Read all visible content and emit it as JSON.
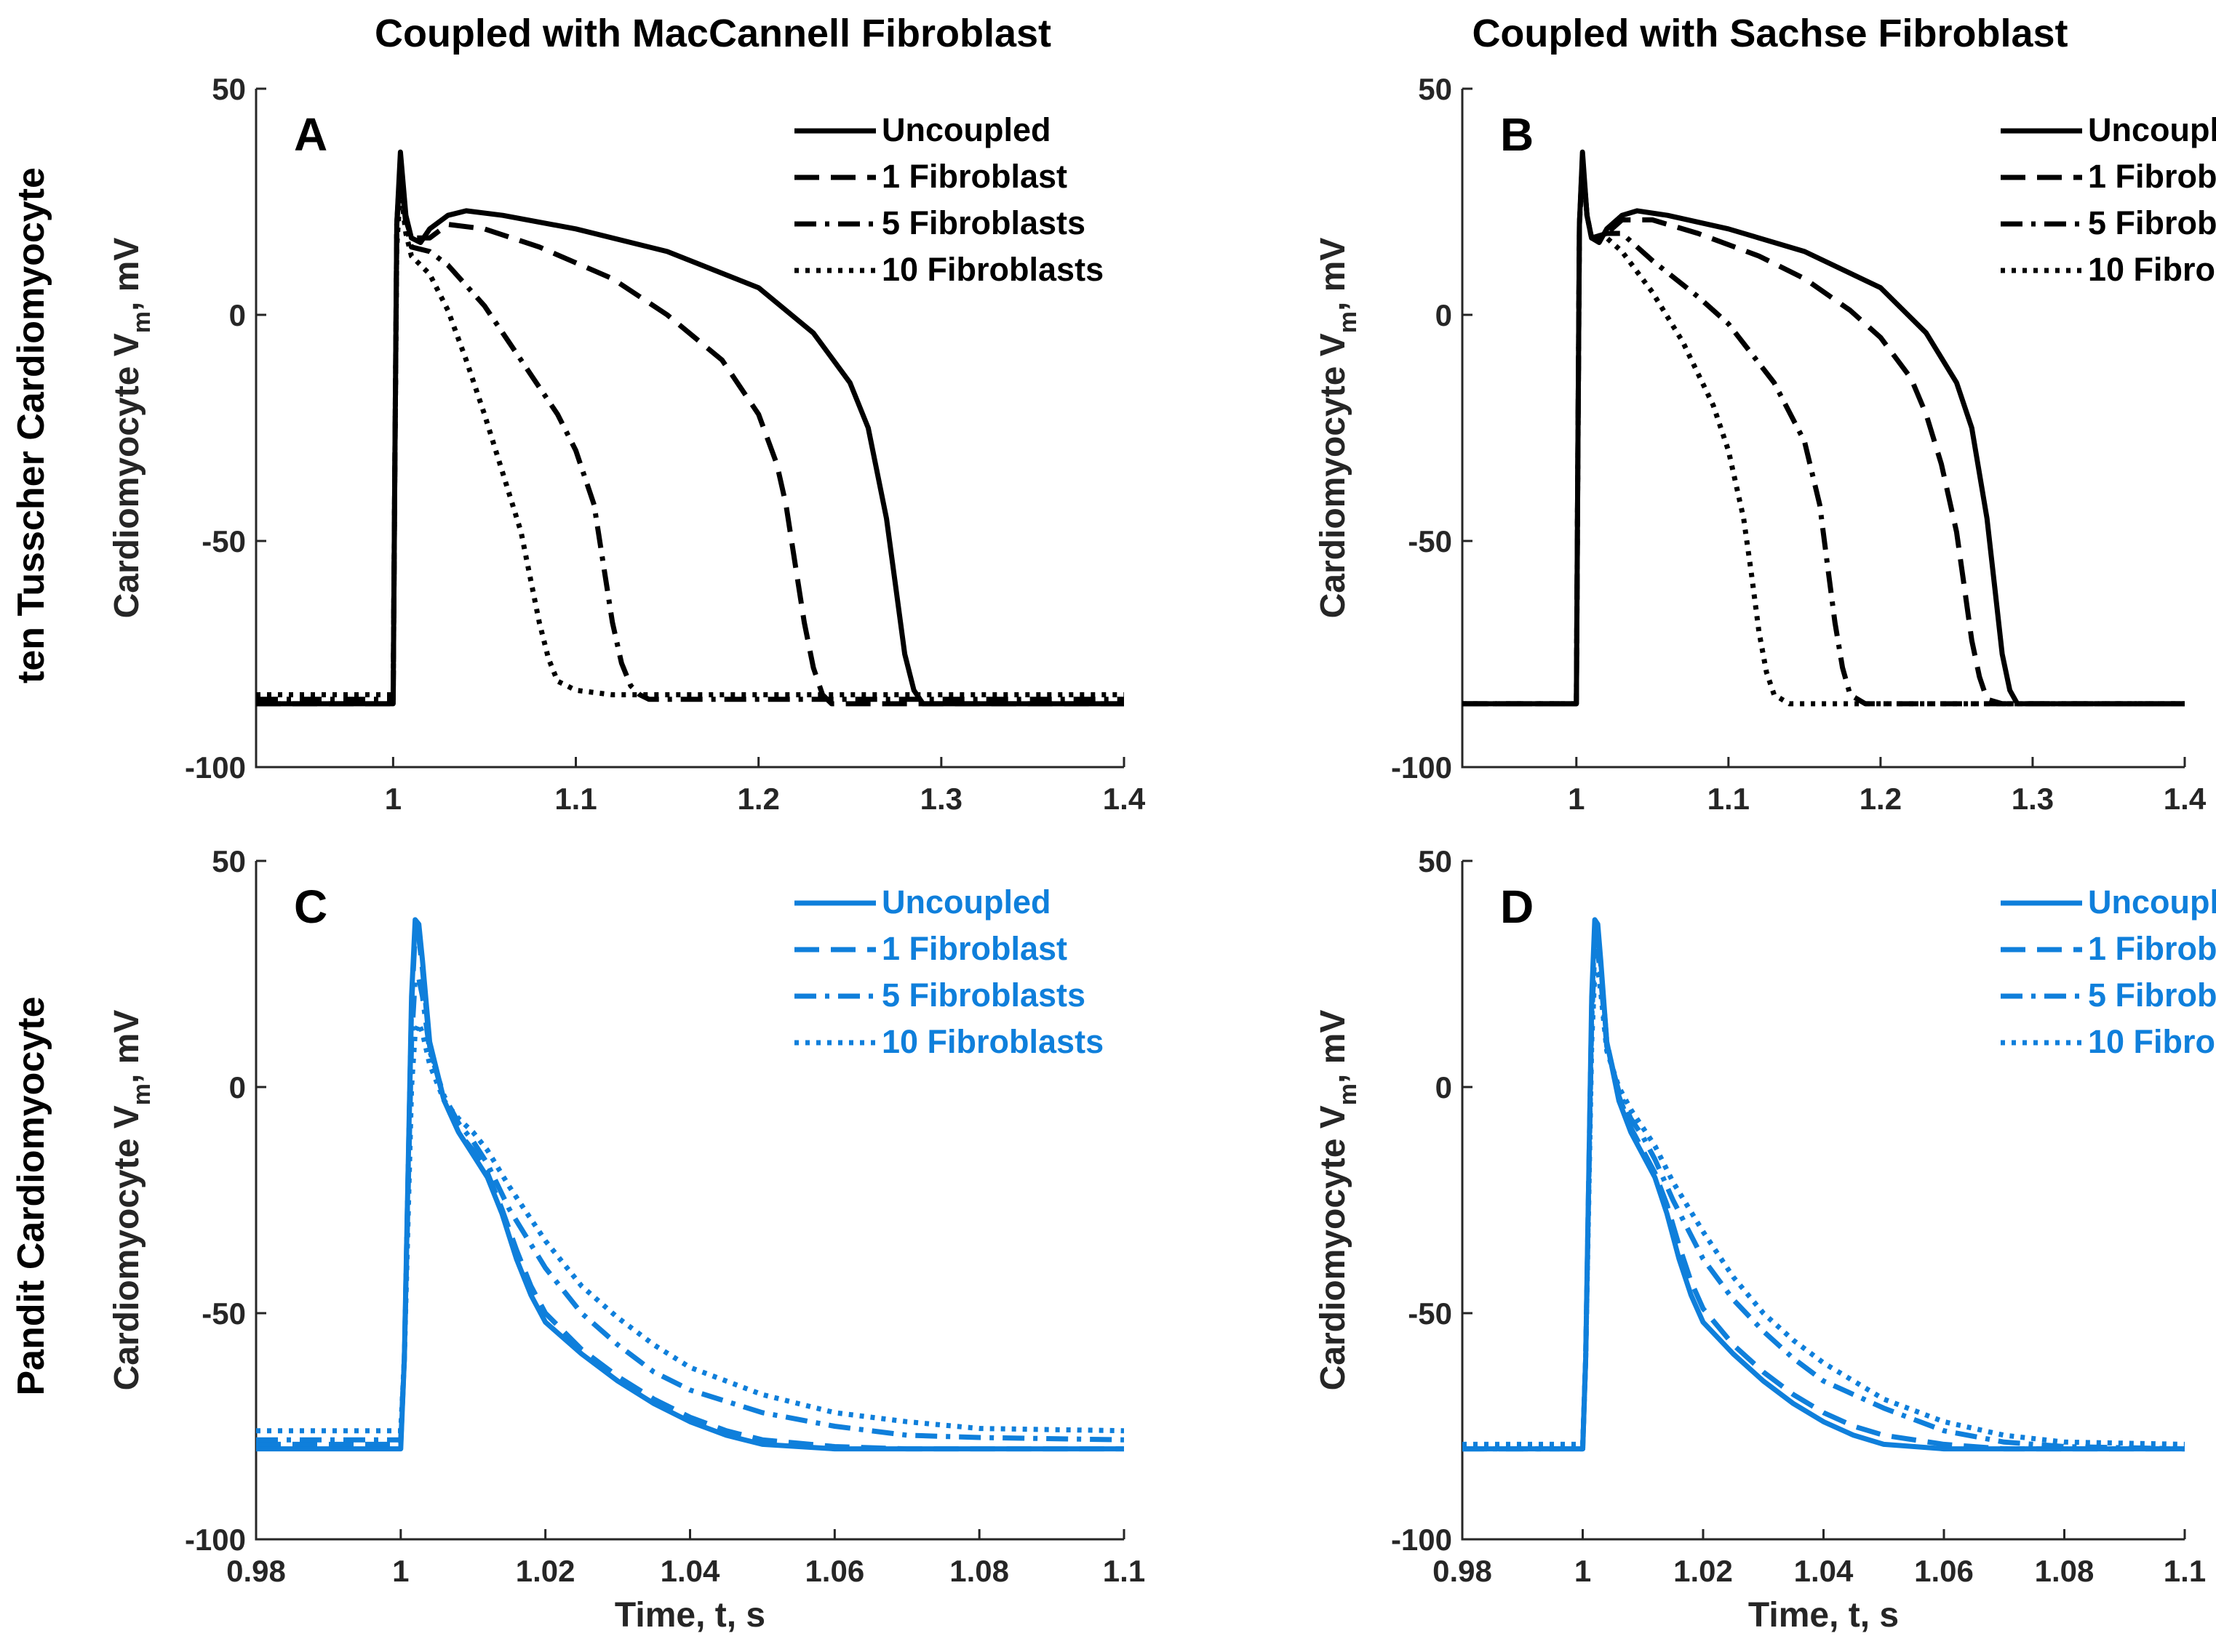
{
  "columns": [
    "Coupled with MacCannell Fibroblast",
    "Coupled with Sachse Fibroblast"
  ],
  "rows": [
    "ten Tusscher Cardiomyocyte",
    "Pandit Cardiomyocyte"
  ],
  "ylabel": "Cardiomyocyte V",
  "ylabel_sub": "m",
  "ylabel_tail": ", mV",
  "xlabel": "Time, t, s",
  "legend_labels": [
    "Uncoupled",
    "1 Fibroblast",
    "5 Fibroblasts",
    "10 Fibroblasts"
  ],
  "colors": {
    "ten_tusscher": "#000000",
    "pandit": "#0F7FDB",
    "axis": "#262626"
  },
  "chart_data": [
    {
      "panel": "A",
      "type": "line",
      "row": 0,
      "col": 0,
      "xlim": [
        0.925,
        1.4
      ],
      "ylim": [
        -100,
        50
      ],
      "xticks": [
        "1",
        "1.1",
        "1.2",
        "1.3",
        "1.4"
      ],
      "xtick_values": [
        1,
        1.1,
        1.2,
        1.3,
        1.4
      ],
      "yticks": [
        "50",
        "0",
        "-50",
        "-100"
      ],
      "ytick_values": [
        50,
        0,
        -50,
        -100
      ],
      "series": [
        {
          "name": "Uncoupled",
          "style": "solid",
          "x": [
            0.925,
            1.0,
            1.001,
            1.002,
            1.004,
            1.007,
            1.01,
            1.015,
            1.02,
            1.03,
            1.04,
            1.06,
            1.1,
            1.15,
            1.2,
            1.23,
            1.25,
            1.26,
            1.27,
            1.275,
            1.28,
            1.285,
            1.29,
            1.3,
            1.35,
            1.4
          ],
          "y": [
            -86,
            -86,
            -30,
            20,
            36,
            22,
            17,
            16,
            19,
            22,
            23,
            22,
            19,
            14,
            6,
            -4,
            -15,
            -25,
            -45,
            -60,
            -75,
            -83,
            -86,
            -86,
            -86,
            -86
          ]
        },
        {
          "name": "1 Fibroblast",
          "style": "dashed",
          "x": [
            0.925,
            1.0,
            1.001,
            1.002,
            1.004,
            1.007,
            1.01,
            1.02,
            1.03,
            1.05,
            1.08,
            1.12,
            1.15,
            1.18,
            1.2,
            1.21,
            1.215,
            1.22,
            1.225,
            1.23,
            1.235,
            1.24,
            1.26,
            1.3,
            1.35,
            1.4
          ],
          "y": [
            -86,
            -86,
            -30,
            20,
            34,
            21,
            17,
            17,
            20,
            19,
            15,
            8,
            0,
            -10,
            -22,
            -33,
            -42,
            -55,
            -68,
            -78,
            -84,
            -86,
            -86,
            -86,
            -86,
            -86
          ]
        },
        {
          "name": "5 Fibroblasts",
          "style": "dashdot",
          "x": [
            0.925,
            1.0,
            1.001,
            1.002,
            1.004,
            1.007,
            1.01,
            1.02,
            1.03,
            1.05,
            1.07,
            1.09,
            1.1,
            1.11,
            1.115,
            1.12,
            1.125,
            1.13,
            1.135,
            1.14,
            1.16,
            1.2,
            1.3,
            1.4
          ],
          "y": [
            -85,
            -85,
            -30,
            20,
            32,
            20,
            15,
            14,
            11,
            2,
            -10,
            -22,
            -30,
            -42,
            -55,
            -68,
            -77,
            -82,
            -84,
            -85,
            -85,
            -85,
            -85,
            -85
          ]
        },
        {
          "name": "10 Fibroblasts",
          "style": "dotted",
          "x": [
            0.925,
            1.0,
            1.001,
            1.002,
            1.004,
            1.007,
            1.01,
            1.02,
            1.03,
            1.04,
            1.05,
            1.06,
            1.07,
            1.075,
            1.08,
            1.085,
            1.09,
            1.1,
            1.12,
            1.15,
            1.2,
            1.3,
            1.4
          ],
          "y": [
            -84,
            -84,
            -30,
            15,
            28,
            18,
            13,
            9,
            1,
            -10,
            -22,
            -35,
            -48,
            -58,
            -68,
            -76,
            -81,
            -83,
            -84,
            -84,
            -84,
            -84,
            -84
          ]
        }
      ]
    },
    {
      "panel": "B",
      "type": "line",
      "row": 0,
      "col": 1,
      "xlim": [
        0.925,
        1.4
      ],
      "ylim": [
        -100,
        50
      ],
      "xticks": [
        "1",
        "1.1",
        "1.2",
        "1.3",
        "1.4"
      ],
      "xtick_values": [
        1,
        1.1,
        1.2,
        1.3,
        1.4
      ],
      "yticks": [
        "50",
        "0",
        "-50",
        "-100"
      ],
      "ytick_values": [
        50,
        0,
        -50,
        -100
      ],
      "series": [
        {
          "name": "Uncoupled",
          "style": "solid",
          "x": [
            0.925,
            1.0,
            1.001,
            1.002,
            1.004,
            1.007,
            1.01,
            1.015,
            1.02,
            1.03,
            1.04,
            1.06,
            1.1,
            1.15,
            1.2,
            1.23,
            1.25,
            1.26,
            1.27,
            1.275,
            1.28,
            1.285,
            1.29,
            1.3,
            1.35,
            1.4
          ],
          "y": [
            -86,
            -86,
            -30,
            20,
            36,
            22,
            17,
            16,
            19,
            22,
            23,
            22,
            19,
            14,
            6,
            -4,
            -15,
            -25,
            -45,
            -60,
            -75,
            -83,
            -86,
            -86,
            -86,
            -86
          ]
        },
        {
          "name": "1 Fibroblast",
          "style": "dashed",
          "x": [
            0.925,
            1.0,
            1.001,
            1.002,
            1.004,
            1.007,
            1.01,
            1.02,
            1.03,
            1.05,
            1.08,
            1.12,
            1.15,
            1.18,
            1.2,
            1.22,
            1.23,
            1.24,
            1.25,
            1.255,
            1.26,
            1.265,
            1.27,
            1.28,
            1.3,
            1.4
          ],
          "y": [
            -86,
            -86,
            -30,
            20,
            35,
            22,
            17,
            18,
            21,
            21,
            18,
            13,
            8,
            1,
            -5,
            -14,
            -22,
            -33,
            -48,
            -60,
            -72,
            -80,
            -85,
            -86,
            -86,
            -86
          ]
        },
        {
          "name": "5 Fibroblasts",
          "style": "dashdot",
          "x": [
            0.925,
            1.0,
            1.001,
            1.002,
            1.004,
            1.007,
            1.01,
            1.02,
            1.03,
            1.05,
            1.08,
            1.1,
            1.13,
            1.15,
            1.16,
            1.165,
            1.17,
            1.175,
            1.18,
            1.19,
            1.2,
            1.3,
            1.4
          ],
          "y": [
            -86,
            -86,
            -30,
            20,
            34,
            22,
            17,
            18,
            18,
            12,
            4,
            -2,
            -15,
            -28,
            -42,
            -55,
            -68,
            -78,
            -84,
            -86,
            -86,
            -86,
            -86
          ]
        },
        {
          "name": "10 Fibroblasts",
          "style": "dotted",
          "x": [
            0.925,
            1.0,
            1.001,
            1.002,
            1.004,
            1.007,
            1.01,
            1.02,
            1.03,
            1.05,
            1.07,
            1.09,
            1.1,
            1.11,
            1.115,
            1.12,
            1.125,
            1.13,
            1.14,
            1.16,
            1.2,
            1.3,
            1.4
          ],
          "y": [
            -86,
            -86,
            -30,
            20,
            33,
            22,
            17,
            17,
            14,
            5,
            -6,
            -20,
            -30,
            -45,
            -57,
            -70,
            -79,
            -84,
            -86,
            -86,
            -86,
            -86,
            -86
          ]
        }
      ]
    },
    {
      "panel": "C",
      "type": "line",
      "row": 1,
      "col": 0,
      "xlim": [
        0.98,
        1.1
      ],
      "ylim": [
        -100,
        50
      ],
      "xticks": [
        "0.98",
        "1",
        "1.02",
        "1.04",
        "1.06",
        "1.08",
        "1.1"
      ],
      "xtick_values": [
        0.98,
        1.0,
        1.02,
        1.04,
        1.06,
        1.08,
        1.1
      ],
      "yticks": [
        "50",
        "0",
        "-50",
        "-100"
      ],
      "ytick_values": [
        50,
        0,
        -50,
        -100
      ],
      "series": [
        {
          "name": "Uncoupled",
          "style": "solid",
          "x": [
            0.98,
            1.0,
            1.0005,
            1.001,
            1.0015,
            1.002,
            1.0025,
            1.003,
            1.004,
            1.006,
            1.008,
            1.01,
            1.012,
            1.014,
            1.016,
            1.018,
            1.02,
            1.025,
            1.03,
            1.035,
            1.04,
            1.045,
            1.05,
            1.06,
            1.07,
            1.08,
            1.1
          ],
          "y": [
            -80,
            -80,
            -60,
            -20,
            20,
            37,
            36,
            28,
            10,
            -3,
            -10,
            -15,
            -20,
            -28,
            -38,
            -46,
            -52,
            -59,
            -65,
            -70,
            -74,
            -77,
            -79,
            -80,
            -80,
            -80,
            -80
          ]
        },
        {
          "name": "1 Fibroblast",
          "style": "dashed",
          "x": [
            0.98,
            1.0,
            1.0005,
            1.001,
            1.0015,
            1.002,
            1.0025,
            1.003,
            1.004,
            1.006,
            1.008,
            1.01,
            1.012,
            1.014,
            1.016,
            1.018,
            1.02,
            1.025,
            1.03,
            1.035,
            1.04,
            1.045,
            1.05,
            1.06,
            1.07,
            1.08,
            1.1
          ],
          "y": [
            -79,
            -79,
            -60,
            -20,
            18,
            34,
            33,
            26,
            9,
            -3,
            -10,
            -14,
            -19,
            -27,
            -36,
            -44,
            -50,
            -58,
            -64,
            -69,
            -73,
            -76,
            -78,
            -79.5,
            -80,
            -80,
            -80
          ]
        },
        {
          "name": "5 Fibroblasts",
          "style": "dashdot",
          "x": [
            0.98,
            1.0,
            1.0005,
            1.001,
            1.0015,
            1.002,
            1.0025,
            1.003,
            1.004,
            1.006,
            1.008,
            1.01,
            1.012,
            1.015,
            1.02,
            1.025,
            1.03,
            1.035,
            1.04,
            1.05,
            1.06,
            1.07,
            1.08,
            1.1
          ],
          "y": [
            -78,
            -78,
            -60,
            -25,
            10,
            24,
            24,
            20,
            8,
            -2,
            -8,
            -12,
            -17,
            -27,
            -40,
            -50,
            -57,
            -63,
            -67,
            -72,
            -75,
            -77,
            -77.5,
            -78
          ]
        },
        {
          "name": "10 Fibroblasts",
          "style": "dotted",
          "x": [
            0.98,
            1.0,
            1.0005,
            1.001,
            1.0015,
            1.002,
            1.0025,
            1.003,
            1.004,
            1.006,
            1.008,
            1.01,
            1.012,
            1.015,
            1.02,
            1.025,
            1.03,
            1.035,
            1.04,
            1.05,
            1.06,
            1.07,
            1.08,
            1.1
          ],
          "y": [
            -76,
            -76,
            -60,
            -30,
            0,
            12,
            14,
            12,
            5,
            -3,
            -7,
            -10,
            -14,
            -22,
            -34,
            -44,
            -51,
            -57,
            -62,
            -68,
            -72,
            -74,
            -75.5,
            -76
          ]
        }
      ]
    },
    {
      "panel": "D",
      "type": "line",
      "row": 1,
      "col": 1,
      "xlim": [
        0.98,
        1.1
      ],
      "ylim": [
        -100,
        50
      ],
      "xticks": [
        "0.98",
        "1",
        "1.02",
        "1.04",
        "1.06",
        "1.08",
        "1.1"
      ],
      "xtick_values": [
        0.98,
        1.0,
        1.02,
        1.04,
        1.06,
        1.08,
        1.1
      ],
      "yticks": [
        "50",
        "0",
        "-50",
        "-100"
      ],
      "ytick_values": [
        50,
        0,
        -50,
        -100
      ],
      "series": [
        {
          "name": "Uncoupled",
          "style": "solid",
          "x": [
            0.98,
            1.0,
            1.0005,
            1.001,
            1.0015,
            1.002,
            1.0025,
            1.003,
            1.004,
            1.006,
            1.008,
            1.01,
            1.012,
            1.014,
            1.016,
            1.018,
            1.02,
            1.025,
            1.03,
            1.035,
            1.04,
            1.045,
            1.05,
            1.06,
            1.07,
            1.08,
            1.1
          ],
          "y": [
            -80,
            -80,
            -60,
            -20,
            20,
            37,
            36,
            28,
            10,
            -3,
            -10,
            -15,
            -20,
            -28,
            -38,
            -46,
            -52,
            -59,
            -65,
            -70,
            -74,
            -77,
            -79,
            -80,
            -80,
            -80,
            -80
          ]
        },
        {
          "name": "1 Fibroblast",
          "style": "dashed",
          "x": [
            0.98,
            1.0,
            1.0005,
            1.001,
            1.0015,
            1.002,
            1.0025,
            1.003,
            1.004,
            1.006,
            1.008,
            1.01,
            1.012,
            1.014,
            1.016,
            1.018,
            1.02,
            1.025,
            1.03,
            1.035,
            1.04,
            1.045,
            1.05,
            1.06,
            1.07,
            1.08,
            1.1
          ],
          "y": [
            -80,
            -80,
            -60,
            -20,
            18,
            35,
            34,
            27,
            10,
            -2,
            -9,
            -14,
            -19,
            -26,
            -35,
            -43,
            -49,
            -57,
            -63,
            -68,
            -72,
            -75,
            -77,
            -79,
            -80,
            -80,
            -80
          ]
        },
        {
          "name": "5 Fibroblasts",
          "style": "dashdot",
          "x": [
            0.98,
            1.0,
            1.0005,
            1.001,
            1.0015,
            1.002,
            1.0025,
            1.003,
            1.004,
            1.006,
            1.008,
            1.01,
            1.012,
            1.015,
            1.02,
            1.025,
            1.03,
            1.035,
            1.04,
            1.05,
            1.06,
            1.07,
            1.08,
            1.1
          ],
          "y": [
            -80,
            -80,
            -60,
            -22,
            15,
            30,
            30,
            24,
            9,
            -1,
            -7,
            -11,
            -16,
            -25,
            -38,
            -47,
            -54,
            -60,
            -65,
            -71,
            -76,
            -78.5,
            -79.5,
            -80
          ]
        },
        {
          "name": "10 Fibroblasts",
          "style": "dotted",
          "x": [
            0.98,
            1.0,
            1.0005,
            1.001,
            1.0015,
            1.002,
            1.0025,
            1.003,
            1.004,
            1.006,
            1.008,
            1.01,
            1.012,
            1.015,
            1.02,
            1.025,
            1.03,
            1.035,
            1.04,
            1.05,
            1.06,
            1.07,
            1.08,
            1.1
          ],
          "y": [
            -79,
            -79,
            -60,
            -25,
            10,
            25,
            26,
            21,
            8,
            0,
            -5,
            -9,
            -13,
            -21,
            -32,
            -42,
            -50,
            -56,
            -61,
            -69,
            -74,
            -77,
            -78.5,
            -79
          ]
        }
      ]
    }
  ]
}
